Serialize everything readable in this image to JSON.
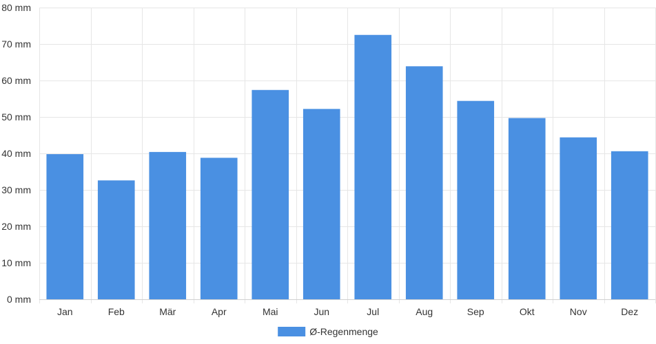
{
  "chart_data": {
    "type": "bar",
    "categories": [
      "Jan",
      "Feb",
      "Mär",
      "Apr",
      "Mai",
      "Jun",
      "Jul",
      "Aug",
      "Sep",
      "Okt",
      "Nov",
      "Dez"
    ],
    "series": [
      {
        "name": "Ø-Regenmenge",
        "color": "#4a90e2",
        "values": [
          39.8,
          32.6,
          40.4,
          38.8,
          57.4,
          52.2,
          72.5,
          63.9,
          54.4,
          49.7,
          44.4,
          40.6
        ]
      }
    ],
    "y_unit": "mm",
    "ylim": [
      0,
      80
    ],
    "y_ticks": [
      0,
      10,
      20,
      30,
      40,
      50,
      60,
      70,
      80
    ],
    "grid": true,
    "legend": "bottom-center"
  }
}
